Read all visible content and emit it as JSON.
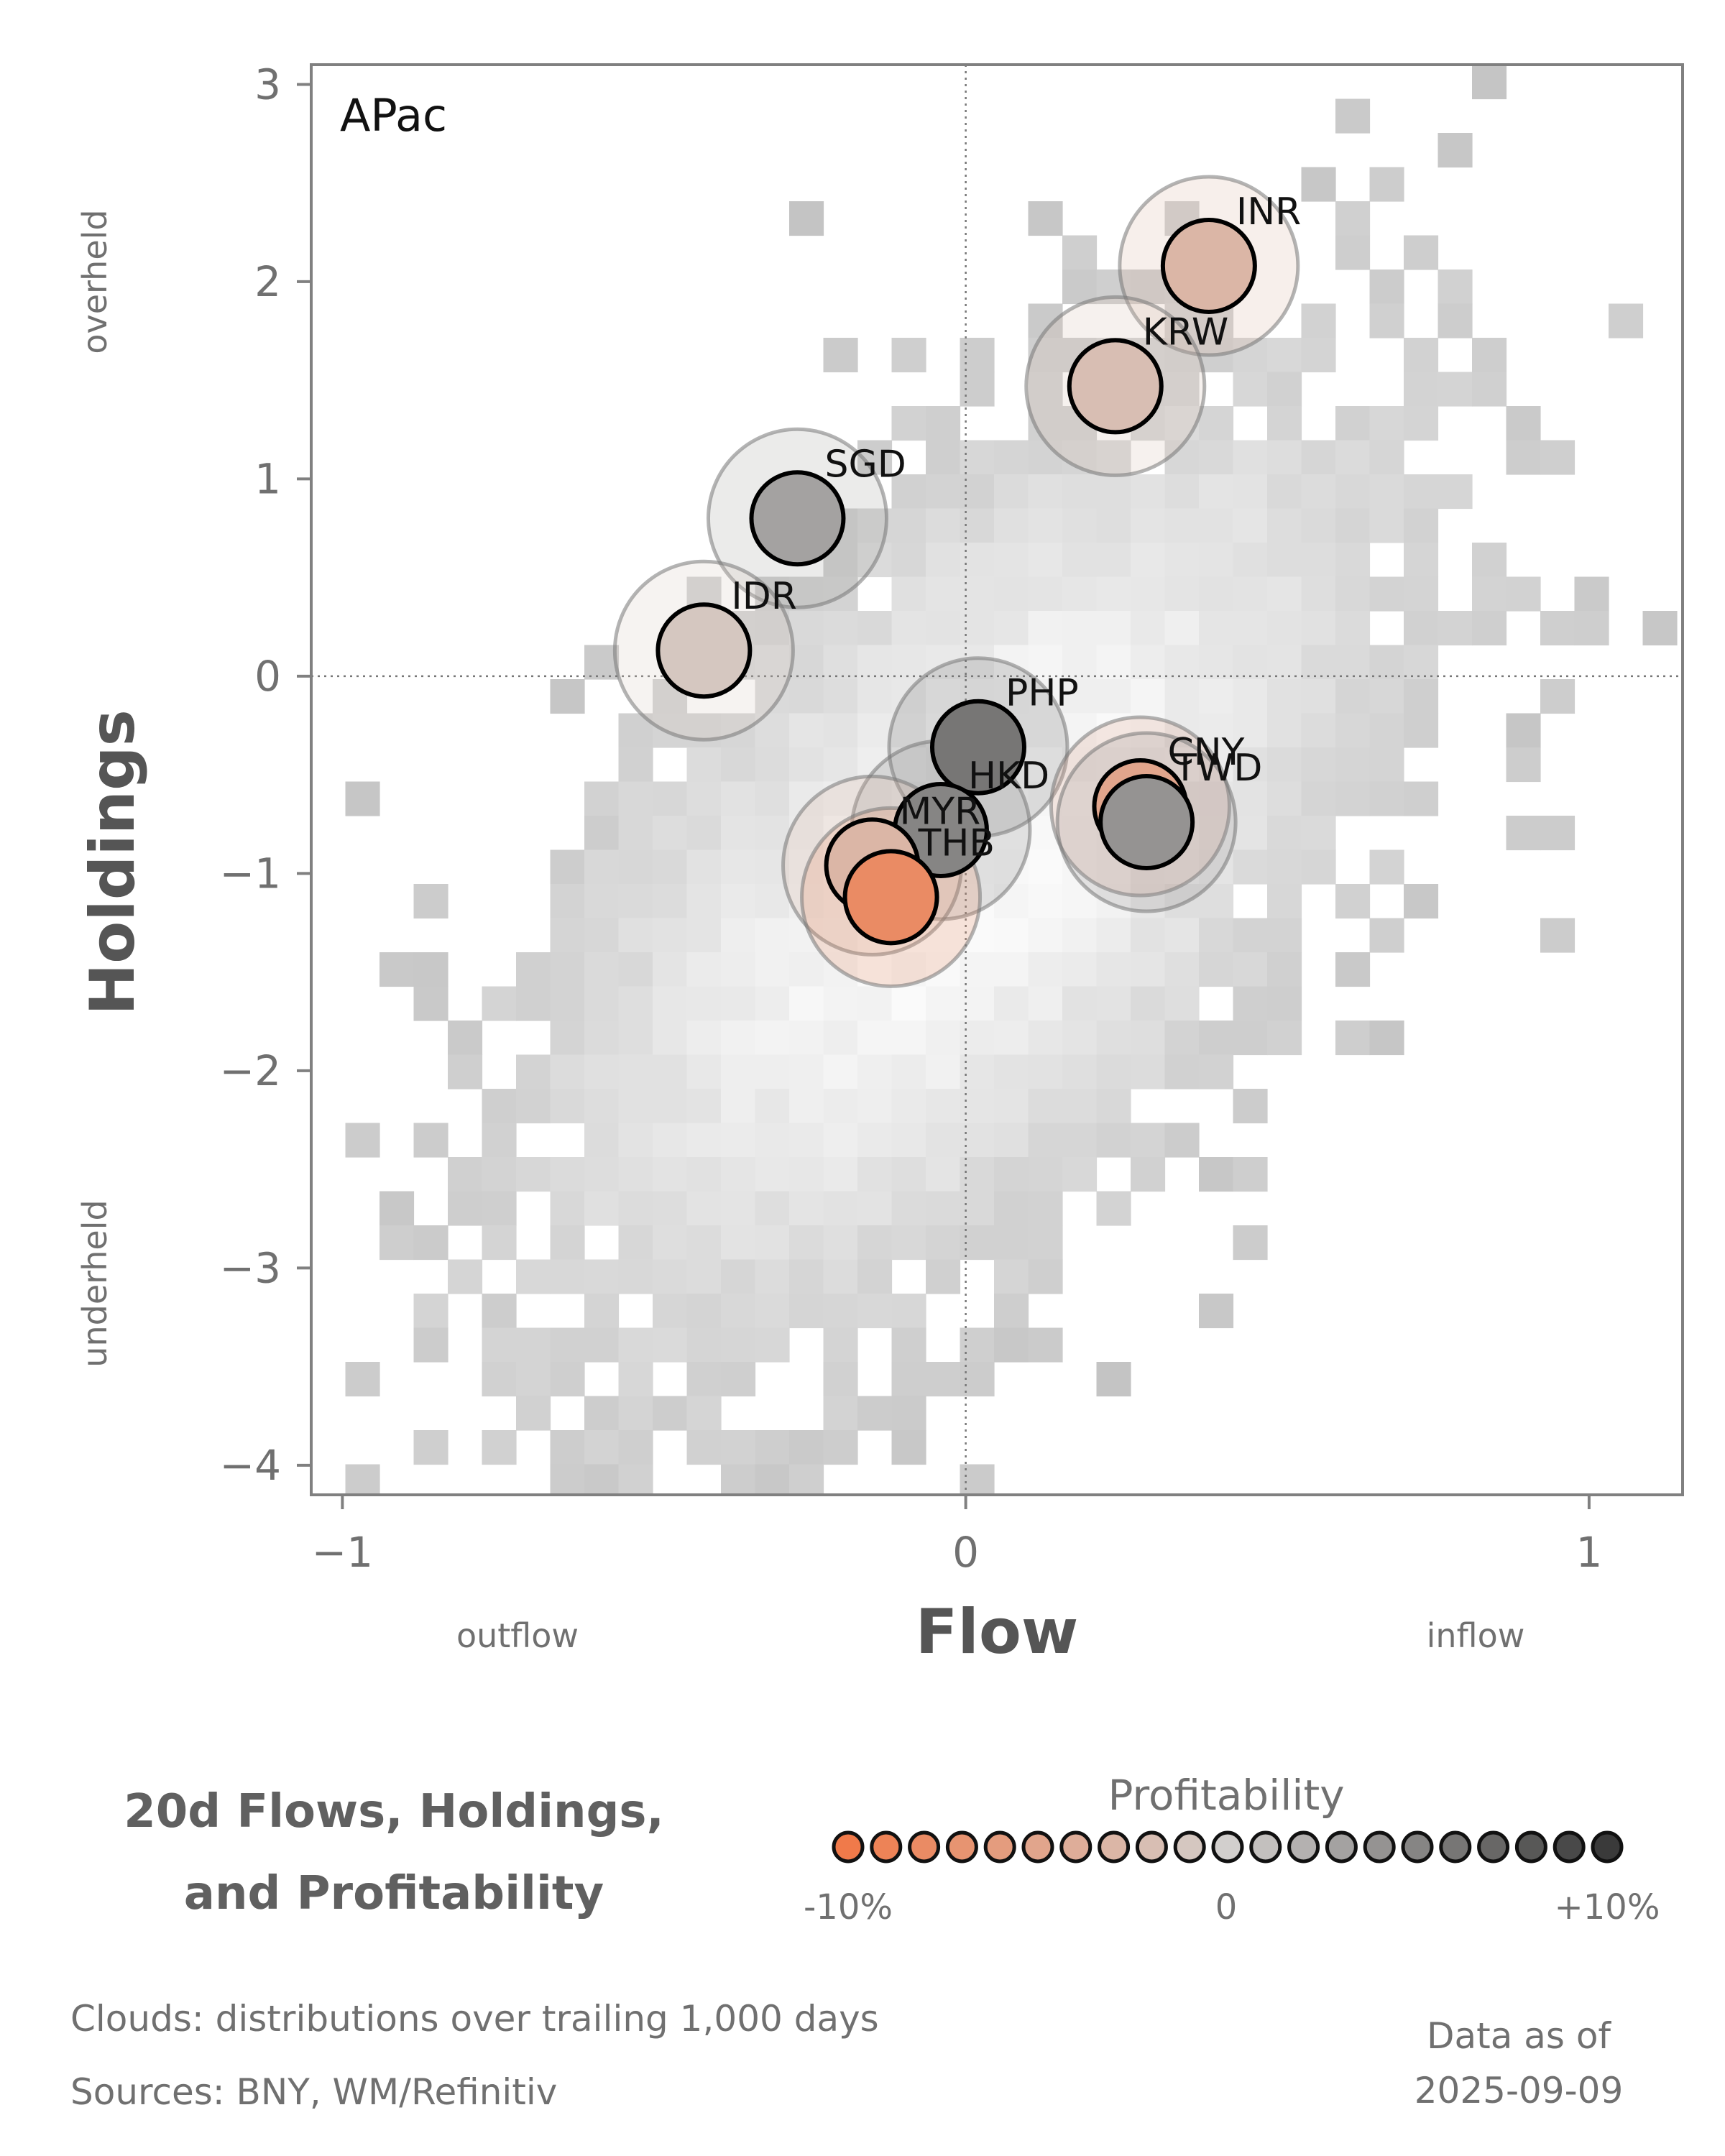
{
  "chart_data": {
    "type": "scatter",
    "region": "APac",
    "xlabel": "Flow",
    "ylabel": "Holdings",
    "x_side_labels": {
      "left": "outflow",
      "right": "inflow"
    },
    "y_side_labels": {
      "top": "overheld",
      "bottom": "underheld"
    },
    "xlim": [
      -1.05,
      1.15
    ],
    "ylim": [
      -4.15,
      3.1
    ],
    "xticks": [
      -1,
      0,
      1
    ],
    "xtick_labels": [
      "−1",
      "0",
      "1"
    ],
    "yticks": [
      -4,
      -3,
      -2,
      -1,
      0,
      1,
      2,
      3
    ],
    "ytick_labels": [
      "−4",
      "−3",
      "−2",
      "−1",
      "0",
      "1",
      "2",
      "3"
    ],
    "reference_lines": {
      "x": 0,
      "y": 0,
      "style": "dotted"
    },
    "background": "2D histogram clouds of trailing 1,000 days (grey shades)",
    "points": [
      {
        "label": "INR",
        "x": 0.39,
        "y": 2.08,
        "profitability": -3
      },
      {
        "label": "KRW",
        "x": 0.24,
        "y": 1.47,
        "profitability": -2
      },
      {
        "label": "SGD",
        "x": -0.27,
        "y": 0.8,
        "profitability": 3
      },
      {
        "label": "IDR",
        "x": -0.42,
        "y": 0.13,
        "profitability": -1
      },
      {
        "label": "PHP",
        "x": 0.02,
        "y": -0.36,
        "profitability": 6
      },
      {
        "label": "HKD",
        "x": -0.04,
        "y": -0.78,
        "profitability": 5
      },
      {
        "label": "MYR",
        "x": -0.15,
        "y": -0.96,
        "profitability": -3
      },
      {
        "label": "THB",
        "x": -0.12,
        "y": -1.12,
        "profitability": -8
      },
      {
        "label": "CNY",
        "x": 0.28,
        "y": -0.66,
        "profitability": -5
      },
      {
        "label": "TWD",
        "x": 0.29,
        "y": -0.74,
        "profitability": 4
      }
    ]
  },
  "footer": {
    "title_line1": "20d Flows, Holdings,",
    "title_line2": "and Profitability",
    "legend_title": "Profitability",
    "legend_min": "-10%",
    "legend_mid": "0",
    "legend_max": "+10%",
    "note_clouds": "Clouds:  distributions over trailing 1,000 days",
    "note_sources": "Sources:  BNY, WM/Refinitiv",
    "asof_line1": "Data as of",
    "asof_line2": "2025-09-09"
  },
  "colors": {
    "negative": "#f07a4a",
    "neutral": "#d2cfcd",
    "positive": "#3a3a3a",
    "frame": "#808080",
    "cloud_base": "#c8c8c8"
  }
}
